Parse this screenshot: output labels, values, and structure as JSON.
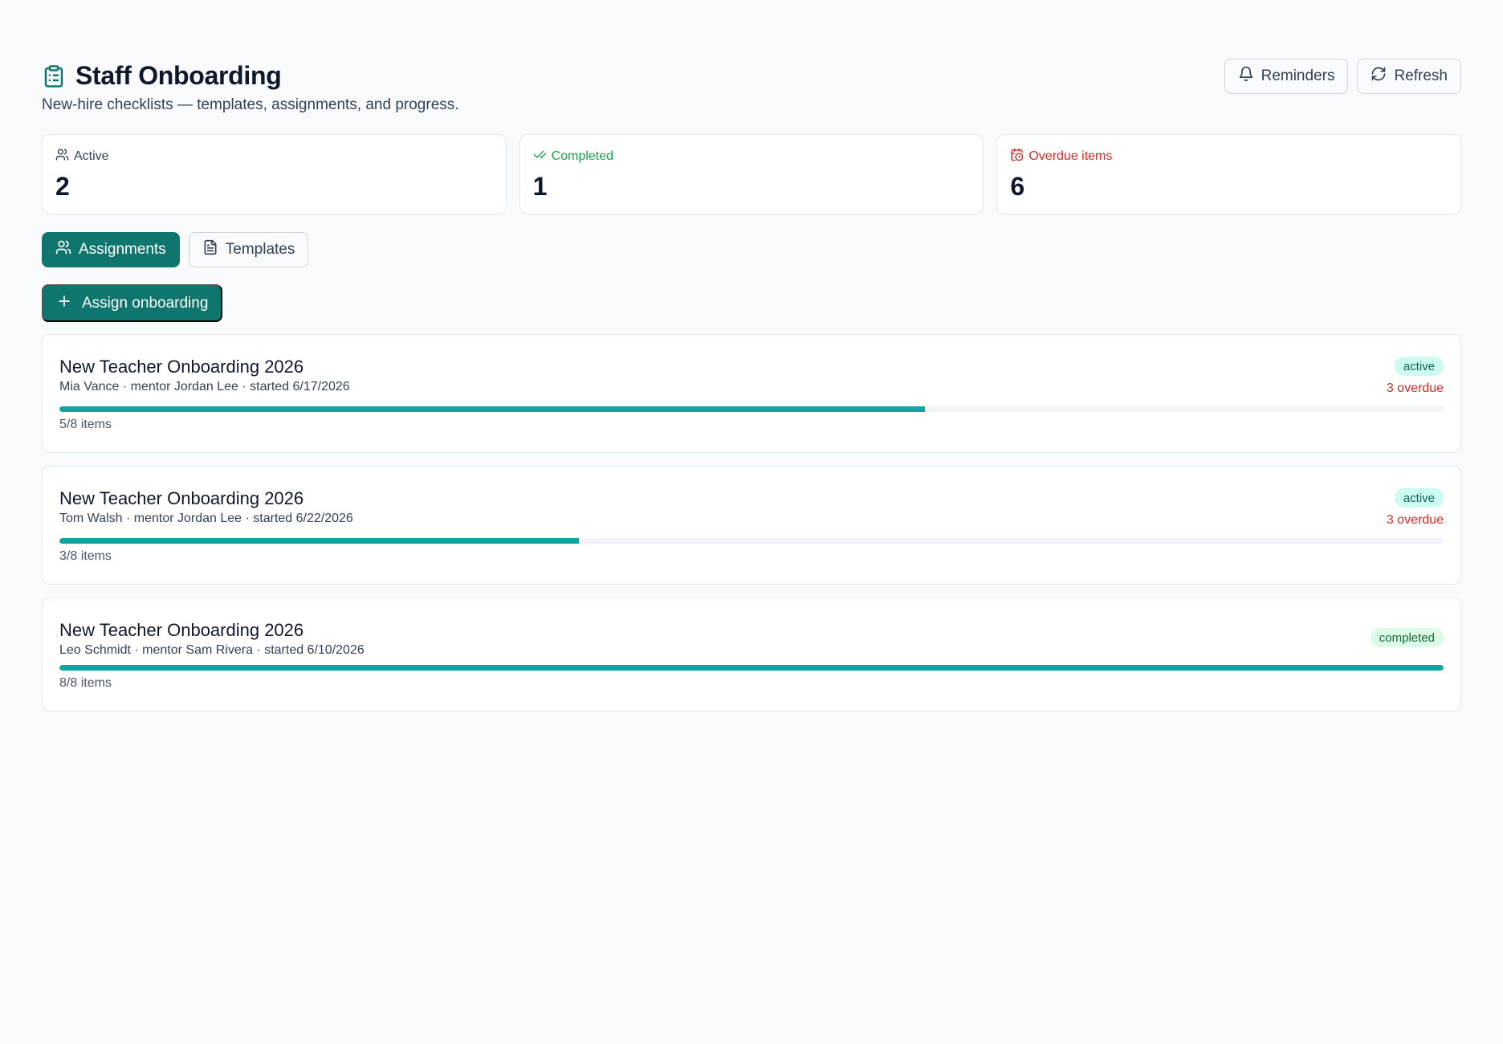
{
  "header": {
    "title": "Staff Onboarding",
    "subtitle": "New-hire checklists — templates, assignments, and progress.",
    "icon": "clipboard-list-icon",
    "actions": [
      {
        "label": "Reminders",
        "icon": "bell-icon"
      },
      {
        "label": "Refresh",
        "icon": "refresh-icon"
      }
    ]
  },
  "stats": [
    {
      "label": "Active",
      "value": "2",
      "icon": "users-icon",
      "color": "#334155"
    },
    {
      "label": "Completed",
      "value": "1",
      "icon": "check-check-icon",
      "color": "#16a34a"
    },
    {
      "label": "Overdue items",
      "value": "6",
      "icon": "calendar-clock-icon",
      "color": "#dc2626"
    }
  ],
  "tabs": [
    {
      "label": "Assignments",
      "icon": "users-icon",
      "active": true
    },
    {
      "label": "Templates",
      "icon": "file-text-icon",
      "active": false
    }
  ],
  "primary_action": {
    "label": "Assign onboarding",
    "icon": "plus-icon"
  },
  "assignments": [
    {
      "title": "New Teacher Onboarding 2026",
      "meta": "Mia Vance · mentor Jordan Lee · started 6/17/2026",
      "status": "active",
      "overdue": "3 overdue",
      "progress": 0.625,
      "count": "5/8 items"
    },
    {
      "title": "New Teacher Onboarding 2026",
      "meta": "Tom Walsh · mentor Jordan Lee · started 6/22/2026",
      "status": "active",
      "overdue": "3 overdue",
      "progress": 0.375,
      "count": "3/8 items"
    },
    {
      "title": "New Teacher Onboarding 2026",
      "meta": "Leo Schmidt · mentor Sam Rivera · started 6/10/2026",
      "status": "completed",
      "overdue": "",
      "progress": 1.0,
      "count": "8/8 items"
    }
  ],
  "colors": {
    "accent": "#0f766e",
    "progress": "#14a3a3",
    "danger": "#dc2626",
    "success": "#16a34a"
  }
}
